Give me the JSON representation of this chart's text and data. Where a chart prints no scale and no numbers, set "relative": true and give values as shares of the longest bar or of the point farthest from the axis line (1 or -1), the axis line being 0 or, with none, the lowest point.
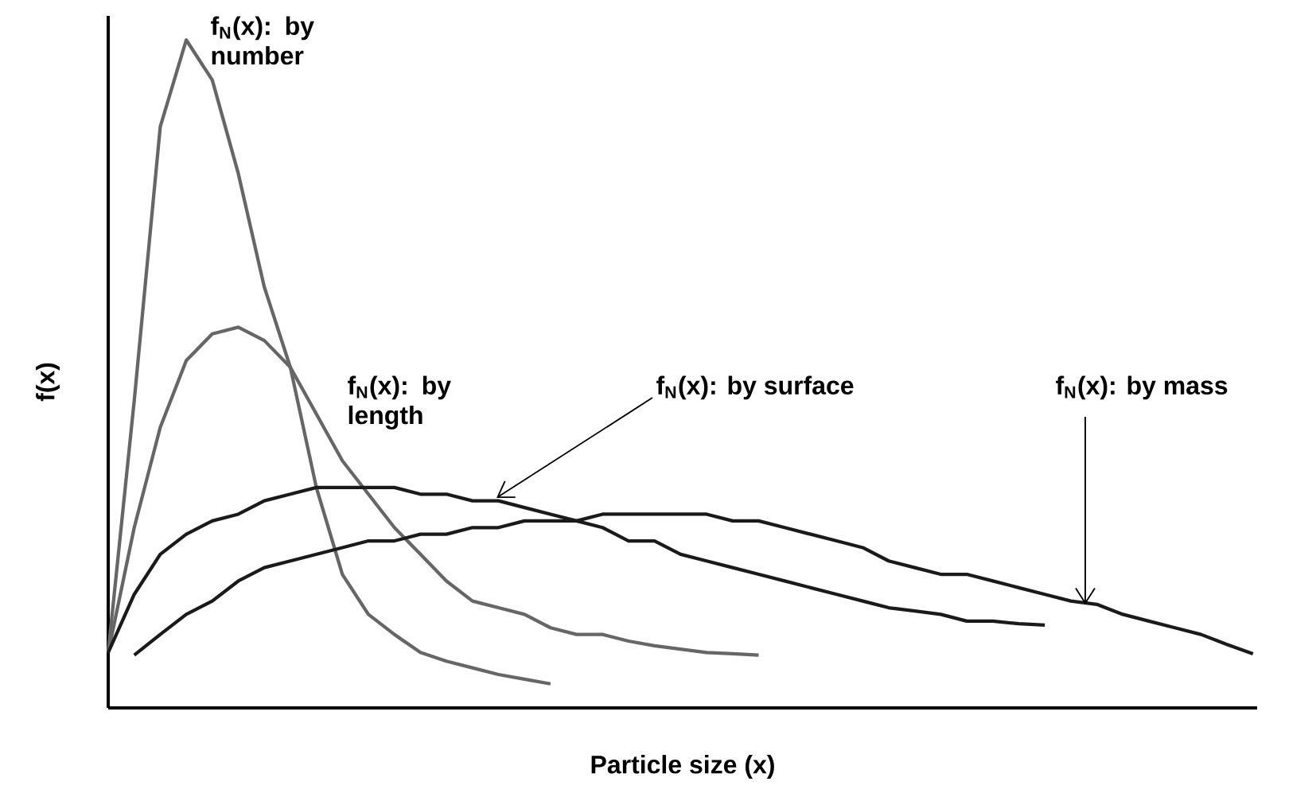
{
  "chart_data": {
    "type": "line",
    "relative": true,
    "xlabel": "Particle size (x)",
    "ylabel": "f(x)",
    "categories": [
      null,
      null,
      null,
      null,
      null,
      null,
      null,
      null,
      null,
      null,
      null,
      null,
      null,
      null,
      null,
      null,
      null,
      null,
      null,
      null,
      null,
      null,
      null,
      null,
      null,
      null,
      null,
      null,
      null,
      null,
      null,
      null,
      null,
      null,
      null,
      null,
      null,
      null,
      null,
      null,
      null,
      null,
      null,
      null,
      null
    ],
    "series": [
      {
        "color": "#666666",
        "values": [
          0.083,
          0.46,
          0.87,
          1.0,
          0.94,
          0.8,
          0.63,
          0.51,
          0.33,
          0.2,
          0.14,
          0.11,
          0.083,
          0.07,
          0.06,
          0.05,
          0.043,
          0.036,
          null,
          null,
          null,
          null,
          null,
          null,
          null,
          null,
          null,
          null,
          null,
          null,
          null,
          null,
          null,
          null,
          null,
          null,
          null,
          null,
          null,
          null,
          null,
          null,
          null,
          null,
          null
        ]
      },
      {
        "color": "#666666",
        "values": [
          0.083,
          0.27,
          0.42,
          0.52,
          0.56,
          0.57,
          0.55,
          0.51,
          0.44,
          0.37,
          0.32,
          0.27,
          0.23,
          0.19,
          0.16,
          0.15,
          0.14,
          0.12,
          0.11,
          0.11,
          0.1,
          0.093,
          0.088,
          0.083,
          0.081,
          0.079,
          null,
          null,
          null,
          null,
          null,
          null,
          null,
          null,
          null,
          null,
          null,
          null,
          null,
          null,
          null,
          null,
          null,
          null,
          null
        ]
      },
      {
        "color": "#1a1a1a",
        "values": [
          0.083,
          0.17,
          0.23,
          0.26,
          0.28,
          0.29,
          0.31,
          0.32,
          0.33,
          0.33,
          0.33,
          0.33,
          0.32,
          0.32,
          0.31,
          0.31,
          0.3,
          0.29,
          0.28,
          0.27,
          0.25,
          0.25,
          0.23,
          0.22,
          0.21,
          0.2,
          0.19,
          0.18,
          0.17,
          0.16,
          0.15,
          0.145,
          0.14,
          0.13,
          0.13,
          0.126,
          0.124,
          null,
          null,
          null,
          null,
          null,
          null,
          null,
          null
        ]
      },
      {
        "color": "#1a1a1a",
        "values": [
          null,
          0.079,
          0.11,
          0.14,
          0.16,
          0.19,
          0.21,
          0.22,
          0.23,
          0.24,
          0.25,
          0.25,
          0.26,
          0.26,
          0.27,
          0.27,
          0.28,
          0.28,
          0.28,
          0.29,
          0.29,
          0.29,
          0.29,
          0.29,
          0.28,
          0.28,
          0.27,
          0.26,
          0.25,
          0.24,
          0.22,
          0.21,
          0.2,
          0.2,
          0.19,
          0.18,
          0.17,
          0.16,
          0.155,
          0.14,
          0.13,
          0.12,
          0.11,
          0.095,
          0.081
        ]
      }
    ],
    "annotations": [
      "f$_{N}$(x): by number",
      "f$_{N}$(x): by length",
      "f$_{N}$(x): by surface",
      "f$_{N}$(x): by mass"
    ]
  }
}
